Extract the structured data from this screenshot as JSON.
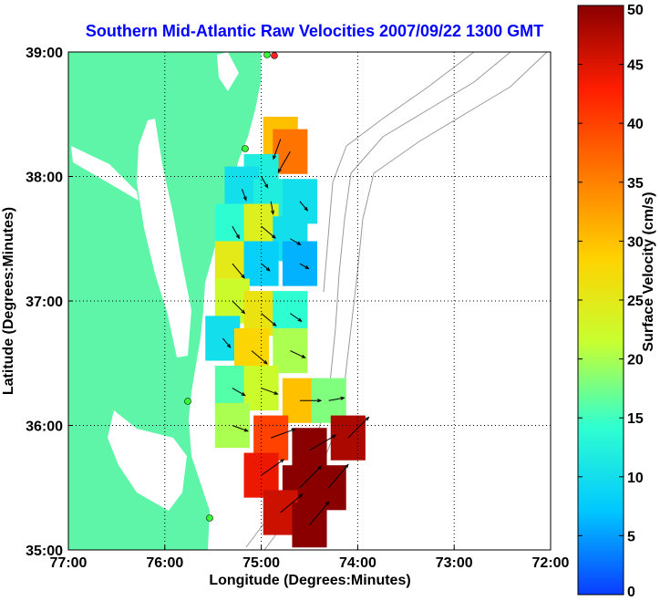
{
  "chart_data": {
    "type": "heatmap",
    "title": "Southern Mid-Atlantic Raw Velocities 2007/09/22 1300 GMT",
    "xlabel": "Longitude (Degrees:Minutes)",
    "ylabel": "Latitude (Degrees:Minutes)",
    "xlim": [
      -77,
      -72
    ],
    "ylim": [
      35,
      39
    ],
    "x_ticks": [
      {
        "value": -77,
        "label": "77:00"
      },
      {
        "value": -76,
        "label": "76:00"
      },
      {
        "value": -75,
        "label": "75:00"
      },
      {
        "value": -74,
        "label": "74:00"
      },
      {
        "value": -73,
        "label": "73:00"
      },
      {
        "value": -72,
        "label": "72:00"
      }
    ],
    "y_ticks": [
      {
        "value": 35,
        "label": "35:00"
      },
      {
        "value": 36,
        "label": "36:00"
      },
      {
        "value": 37,
        "label": "37:00"
      },
      {
        "value": 38,
        "label": "38:00"
      },
      {
        "value": 39,
        "label": "39:00"
      }
    ],
    "grid": true,
    "colorbar": {
      "label": "Surface Velocity (cm/s)",
      "range": [
        0,
        50
      ],
      "ticks": [
        {
          "value": 0,
          "label": "0"
        },
        {
          "value": 5,
          "label": "5"
        },
        {
          "value": 10,
          "label": "10"
        },
        {
          "value": 15,
          "label": "15"
        },
        {
          "value": 20,
          "label": "20"
        },
        {
          "value": 25,
          "label": "25"
        },
        {
          "value": 30,
          "label": "30"
        },
        {
          "value": 35,
          "label": "35"
        },
        {
          "value": 40,
          "label": "40"
        },
        {
          "value": 45,
          "label": "45"
        },
        {
          "value": 50,
          "label": "50"
        }
      ],
      "colors": [
        "#0a3cff",
        "#00c8ff",
        "#30ffd0",
        "#c8ff30",
        "#ffd200",
        "#ff7800",
        "#ff1e00",
        "#8a0000"
      ]
    },
    "land_color": "#5ef5a9",
    "field": [
      {
        "lon": -74.8,
        "lat": 38.3,
        "speed": 30,
        "dir": 200
      },
      {
        "lon": -74.7,
        "lat": 38.2,
        "speed": 36,
        "dir": 210
      },
      {
        "lon": -75.0,
        "lat": 38.0,
        "speed": 12,
        "dir": 150
      },
      {
        "lon": -75.2,
        "lat": 37.9,
        "speed": 10,
        "dir": 160
      },
      {
        "lon": -74.9,
        "lat": 37.8,
        "speed": 12,
        "dir": 170
      },
      {
        "lon": -74.6,
        "lat": 37.8,
        "speed": 10,
        "dir": 140
      },
      {
        "lon": -75.3,
        "lat": 37.6,
        "speed": 14,
        "dir": 150
      },
      {
        "lon": -75.0,
        "lat": 37.6,
        "speed": 24,
        "dir": 130
      },
      {
        "lon": -74.7,
        "lat": 37.5,
        "speed": 10,
        "dir": 120
      },
      {
        "lon": -75.3,
        "lat": 37.3,
        "speed": 25,
        "dir": 140
      },
      {
        "lon": -75.0,
        "lat": 37.3,
        "speed": 8,
        "dir": 130
      },
      {
        "lon": -74.6,
        "lat": 37.3,
        "speed": 6,
        "dir": 120
      },
      {
        "lon": -75.3,
        "lat": 37.0,
        "speed": 22,
        "dir": 135
      },
      {
        "lon": -75.0,
        "lat": 36.9,
        "speed": 26,
        "dir": 130
      },
      {
        "lon": -74.7,
        "lat": 36.9,
        "speed": 14,
        "dir": 125
      },
      {
        "lon": -75.4,
        "lat": 36.7,
        "speed": 10,
        "dir": 140
      },
      {
        "lon": -75.1,
        "lat": 36.6,
        "speed": 28,
        "dir": 130
      },
      {
        "lon": -74.7,
        "lat": 36.6,
        "speed": 20,
        "dir": 115
      },
      {
        "lon": -75.3,
        "lat": 36.3,
        "speed": 16,
        "dir": 120
      },
      {
        "lon": -75.0,
        "lat": 36.3,
        "speed": 22,
        "dir": 110
      },
      {
        "lon": -74.6,
        "lat": 36.2,
        "speed": 30,
        "dir": 90
      },
      {
        "lon": -74.3,
        "lat": 36.2,
        "speed": 18,
        "dir": 80
      },
      {
        "lon": -75.3,
        "lat": 36.0,
        "speed": 20,
        "dir": 110
      },
      {
        "lon": -74.9,
        "lat": 35.9,
        "speed": 40,
        "dir": 70
      },
      {
        "lon": -74.5,
        "lat": 35.8,
        "speed": 50,
        "dir": 60
      },
      {
        "lon": -74.1,
        "lat": 35.9,
        "speed": 48,
        "dir": 45
      },
      {
        "lon": -75.0,
        "lat": 35.6,
        "speed": 44,
        "dir": 55
      },
      {
        "lon": -74.6,
        "lat": 35.5,
        "speed": 50,
        "dir": 45
      },
      {
        "lon": -74.3,
        "lat": 35.5,
        "speed": 50,
        "dir": 40
      },
      {
        "lon": -74.8,
        "lat": 35.3,
        "speed": 46,
        "dir": 50
      },
      {
        "lon": -74.5,
        "lat": 35.2,
        "speed": 50,
        "dir": 40
      }
    ]
  }
}
